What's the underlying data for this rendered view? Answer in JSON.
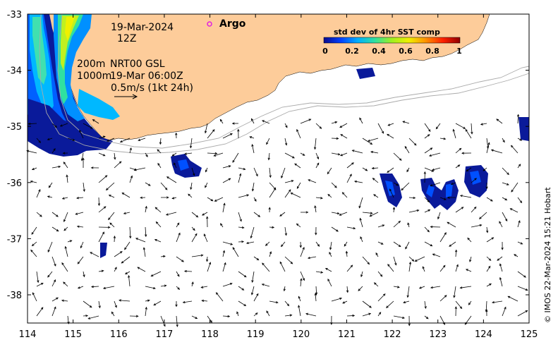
{
  "annotations": {
    "date": "19-Mar-2024",
    "hour": "12Z",
    "contour_200": "200m",
    "contour_1000": "1000m",
    "product": "NRT00 GSL",
    "product_time": "19-Mar 06:00Z",
    "scale_label": "0.5m/s (1kt 24h)"
  },
  "legend": {
    "argo_label": "Argo",
    "argo_color": "#e020e0"
  },
  "colorbar": {
    "title": "std dev of 4hr SST comp",
    "ticks": [
      "0",
      "0.2",
      "0.4",
      "0.6",
      "0.8",
      "1"
    ],
    "colors": [
      "#0a0a8c",
      "#0040ff",
      "#00b0ff",
      "#30e0a0",
      "#a0f020",
      "#f0f000",
      "#ff9000",
      "#ff2000",
      "#900000"
    ]
  },
  "axes": {
    "x_ticks": [
      "114",
      "115",
      "116",
      "117",
      "118",
      "119",
      "120",
      "121",
      "122",
      "123",
      "124",
      "125"
    ],
    "y_ticks": [
      "-33",
      "-34",
      "-35",
      "-36",
      "-37",
      "-38"
    ]
  },
  "colors": {
    "land": "#fdcc9a",
    "ocean": "#ffffff"
  },
  "copyright": "© IMOS 22-Mar-2024 15:21 Hobart"
}
